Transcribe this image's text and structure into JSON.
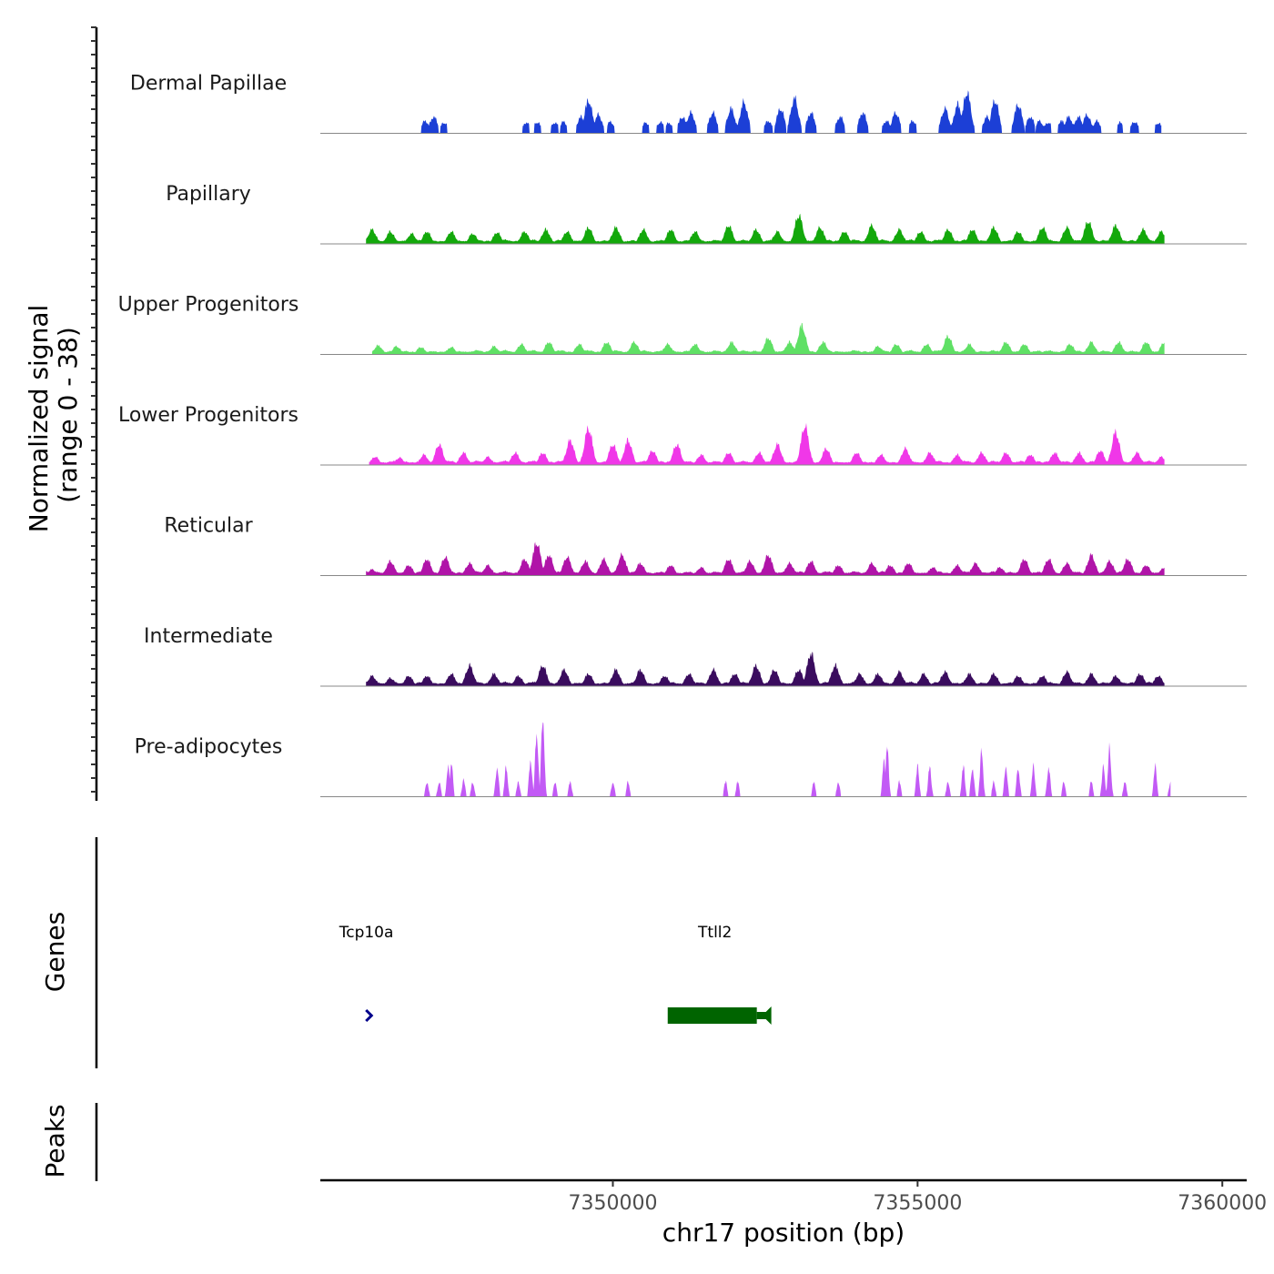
{
  "chart_data": {
    "type": "area",
    "title": "",
    "chromosome": "chr17",
    "xlabel": "chr17 position (bp)",
    "xlim": [
      7345200,
      7360400
    ],
    "xticks": [
      7350000,
      7355000,
      7360000
    ],
    "xtick_labels": [
      "7350000",
      "7355000",
      "7360000"
    ],
    "ylabel": "Normalized signal",
    "ylabel_sub": "(range 0 - 38)",
    "ylim": [
      0,
      38
    ],
    "genes_label": "Genes",
    "peaks_label": "Peaks",
    "series": [
      {
        "name": "Dermal Papillae",
        "color": "#1c3fd6",
        "bins": 40,
        "peaks": [
          [
            7346920,
            3
          ],
          [
            7347060,
            4
          ],
          [
            7347230,
            2.6
          ],
          [
            7348580,
            2.6
          ],
          [
            7348760,
            2.7
          ],
          [
            7349050,
            2.6
          ],
          [
            7349190,
            2.8
          ],
          [
            7349480,
            4
          ],
          [
            7349600,
            8
          ],
          [
            7349760,
            4.5
          ],
          [
            7349960,
            2.8
          ],
          [
            7350540,
            2.6
          ],
          [
            7350780,
            2.7
          ],
          [
            7350920,
            2.5
          ],
          [
            7351140,
            4
          ],
          [
            7351280,
            5
          ],
          [
            7351640,
            5
          ],
          [
            7351940,
            6
          ],
          [
            7352150,
            7.5
          ],
          [
            7352550,
            3
          ],
          [
            7352750,
            6
          ],
          [
            7352980,
            8.5
          ],
          [
            7353250,
            5
          ],
          [
            7353730,
            4
          ],
          [
            7354100,
            5
          ],
          [
            7354490,
            3
          ],
          [
            7354640,
            5
          ],
          [
            7354920,
            3
          ],
          [
            7355450,
            6
          ],
          [
            7355660,
            7
          ],
          [
            7355810,
            10
          ],
          [
            7356140,
            4
          ],
          [
            7356270,
            8
          ],
          [
            7356650,
            7
          ],
          [
            7356850,
            4
          ],
          [
            7357000,
            3
          ],
          [
            7357140,
            2.6
          ],
          [
            7357360,
            3
          ],
          [
            7357480,
            4
          ],
          [
            7357640,
            4
          ],
          [
            7357780,
            4.5
          ],
          [
            7357940,
            3
          ],
          [
            7358320,
            2.6
          ],
          [
            7358560,
            2.8
          ],
          [
            7358950,
            2.5
          ]
        ],
        "start": 7346850,
        "end": 7359000
      },
      {
        "name": "Papillary",
        "color": "#13a80b",
        "bins": 30,
        "peaks": [
          [
            7346050,
            3.5
          ],
          [
            7346350,
            3
          ],
          [
            7346700,
            2.5
          ],
          [
            7346950,
            3
          ],
          [
            7347350,
            3
          ],
          [
            7347700,
            2.5
          ],
          [
            7348100,
            2.8
          ],
          [
            7348550,
            3
          ],
          [
            7348900,
            3.5
          ],
          [
            7349250,
            3
          ],
          [
            7349600,
            4
          ],
          [
            7350050,
            4
          ],
          [
            7350500,
            3.5
          ],
          [
            7350950,
            3.5
          ],
          [
            7351350,
            3
          ],
          [
            7351900,
            4.5
          ],
          [
            7352350,
            3.5
          ],
          [
            7352700,
            3
          ],
          [
            7353050,
            7
          ],
          [
            7353400,
            4
          ],
          [
            7353800,
            3
          ],
          [
            7354250,
            4.5
          ],
          [
            7354700,
            3.5
          ],
          [
            7355050,
            3
          ],
          [
            7355500,
            3.5
          ],
          [
            7355900,
            3.5
          ],
          [
            7356250,
            4
          ],
          [
            7356650,
            3
          ],
          [
            7357050,
            4
          ],
          [
            7357450,
            4
          ],
          [
            7357800,
            5.5
          ],
          [
            7358250,
            4.5
          ],
          [
            7358700,
            3.5
          ],
          [
            7359000,
            3
          ]
        ],
        "start": 7345950,
        "end": 7359050
      },
      {
        "name": "Upper Progenitors",
        "color": "#5fe065",
        "bins": 30,
        "peaks": [
          [
            7346150,
            2.2
          ],
          [
            7346450,
            2
          ],
          [
            7346850,
            1.8
          ],
          [
            7347350,
            1.8
          ],
          [
            7348050,
            2
          ],
          [
            7348500,
            2.5
          ],
          [
            7348950,
            3
          ],
          [
            7349450,
            2.5
          ],
          [
            7349900,
            3
          ],
          [
            7350350,
            3
          ],
          [
            7350900,
            2.5
          ],
          [
            7351350,
            2.5
          ],
          [
            7351950,
            3
          ],
          [
            7352550,
            4
          ],
          [
            7352900,
            3
          ],
          [
            7353100,
            7
          ],
          [
            7353450,
            3
          ],
          [
            7354350,
            2
          ],
          [
            7354650,
            2.5
          ],
          [
            7355150,
            2.5
          ],
          [
            7355500,
            4.5
          ],
          [
            7355850,
            2.5
          ],
          [
            7356450,
            3
          ],
          [
            7356750,
            2.5
          ],
          [
            7357500,
            2.5
          ],
          [
            7357850,
            3
          ],
          [
            7358300,
            3
          ],
          [
            7358750,
            3
          ],
          [
            7359050,
            3
          ]
        ],
        "start": 7346050,
        "end": 7359050
      },
      {
        "name": "Lower Progenitors",
        "color": "#f037e8",
        "bins": 30,
        "peaks": [
          [
            7346100,
            2
          ],
          [
            7346500,
            1.8
          ],
          [
            7346900,
            2.5
          ],
          [
            7347150,
            5
          ],
          [
            7347550,
            3
          ],
          [
            7347950,
            2
          ],
          [
            7348400,
            3
          ],
          [
            7348850,
            3
          ],
          [
            7349300,
            6
          ],
          [
            7349600,
            9
          ],
          [
            7350000,
            5
          ],
          [
            7350250,
            6
          ],
          [
            7350650,
            3.5
          ],
          [
            7351050,
            5
          ],
          [
            7351450,
            2.5
          ],
          [
            7351900,
            3
          ],
          [
            7352400,
            3
          ],
          [
            7352700,
            5
          ],
          [
            7353150,
            9.5
          ],
          [
            7353500,
            4
          ],
          [
            7354000,
            3
          ],
          [
            7354400,
            2.5
          ],
          [
            7354800,
            4
          ],
          [
            7355200,
            3
          ],
          [
            7355650,
            2.5
          ],
          [
            7356050,
            3
          ],
          [
            7356450,
            3
          ],
          [
            7356850,
            2.5
          ],
          [
            7357250,
            3
          ],
          [
            7357650,
            3
          ],
          [
            7358000,
            3.5
          ],
          [
            7358250,
            8
          ],
          [
            7358600,
            3
          ],
          [
            7359000,
            2
          ]
        ],
        "start": 7346000,
        "end": 7359050
      },
      {
        "name": "Reticular",
        "color": "#b014a8",
        "bins": 30,
        "peaks": [
          [
            7346050,
            1.5
          ],
          [
            7346350,
            3.5
          ],
          [
            7346650,
            2.5
          ],
          [
            7346950,
            4
          ],
          [
            7347250,
            4.5
          ],
          [
            7347650,
            3
          ],
          [
            7347950,
            2.5
          ],
          [
            7348550,
            4
          ],
          [
            7348750,
            8
          ],
          [
            7348950,
            5
          ],
          [
            7349250,
            4.5
          ],
          [
            7349550,
            3.5
          ],
          [
            7349850,
            4
          ],
          [
            7350150,
            5
          ],
          [
            7350450,
            3
          ],
          [
            7350950,
            2.5
          ],
          [
            7351450,
            2
          ],
          [
            7351900,
            4
          ],
          [
            7352250,
            3.5
          ],
          [
            7352550,
            5
          ],
          [
            7352900,
            3
          ],
          [
            7353250,
            3.5
          ],
          [
            7353700,
            2.5
          ],
          [
            7354250,
            3
          ],
          [
            7354550,
            2.5
          ],
          [
            7354850,
            3
          ],
          [
            7355250,
            2
          ],
          [
            7355650,
            2.5
          ],
          [
            7355950,
            3
          ],
          [
            7356350,
            2
          ],
          [
            7356750,
            4
          ],
          [
            7357150,
            4
          ],
          [
            7357450,
            3
          ],
          [
            7357850,
            5
          ],
          [
            7358150,
            3.5
          ],
          [
            7358450,
            4
          ],
          [
            7358750,
            2.5
          ],
          [
            7359050,
            2
          ]
        ],
        "start": 7345950,
        "end": 7359050
      },
      {
        "name": "Intermediate",
        "color": "#3a0c5e",
        "bins": 30,
        "peaks": [
          [
            7346050,
            2.5
          ],
          [
            7346350,
            2
          ],
          [
            7346650,
            2.5
          ],
          [
            7346950,
            2.5
          ],
          [
            7347350,
            3
          ],
          [
            7347650,
            5
          ],
          [
            7348050,
            3
          ],
          [
            7348450,
            2.5
          ],
          [
            7348850,
            5
          ],
          [
            7349200,
            4
          ],
          [
            7349600,
            3
          ],
          [
            7350050,
            4
          ],
          [
            7350450,
            4
          ],
          [
            7350850,
            2.5
          ],
          [
            7351250,
            3
          ],
          [
            7351650,
            4
          ],
          [
            7352000,
            3
          ],
          [
            7352350,
            5
          ],
          [
            7352650,
            4
          ],
          [
            7353050,
            4
          ],
          [
            7353250,
            8
          ],
          [
            7353650,
            5
          ],
          [
            7354050,
            3
          ],
          [
            7354350,
            3
          ],
          [
            7354700,
            3.5
          ],
          [
            7355100,
            3
          ],
          [
            7355450,
            3.5
          ],
          [
            7355850,
            3
          ],
          [
            7356250,
            3
          ],
          [
            7356650,
            2.5
          ],
          [
            7357050,
            2.5
          ],
          [
            7357450,
            3.5
          ],
          [
            7357850,
            3
          ],
          [
            7358250,
            2.5
          ],
          [
            7358650,
            3
          ],
          [
            7358950,
            2.5
          ]
        ],
        "start": 7345950,
        "end": 7359050
      },
      {
        "name": "Pre-adipocytes",
        "color": "#c25af5",
        "bins": 60,
        "peaks": [
          [
            7346950,
            8
          ],
          [
            7347150,
            8
          ],
          [
            7347300,
            16
          ],
          [
            7347350,
            18
          ],
          [
            7347550,
            9
          ],
          [
            7347700,
            8
          ],
          [
            7348100,
            16
          ],
          [
            7348250,
            16
          ],
          [
            7348450,
            8
          ],
          [
            7348650,
            20
          ],
          [
            7348750,
            36
          ],
          [
            7348850,
            45
          ],
          [
            7349050,
            8
          ],
          [
            7349300,
            8
          ],
          [
            7350000,
            8
          ],
          [
            7350250,
            8
          ],
          [
            7351850,
            8
          ],
          [
            7352050,
            8
          ],
          [
            7353300,
            8
          ],
          [
            7353700,
            8
          ],
          [
            7354450,
            20
          ],
          [
            7354500,
            27
          ],
          [
            7354700,
            8
          ],
          [
            7355000,
            16
          ],
          [
            7355200,
            16
          ],
          [
            7355500,
            8
          ],
          [
            7355750,
            16
          ],
          [
            7355900,
            16
          ],
          [
            7356050,
            24
          ],
          [
            7356250,
            8
          ],
          [
            7356450,
            16
          ],
          [
            7356650,
            16
          ],
          [
            7356900,
            16
          ],
          [
            7357150,
            16
          ],
          [
            7357400,
            8
          ],
          [
            7357850,
            8
          ],
          [
            7358050,
            16
          ],
          [
            7358150,
            26
          ],
          [
            7358400,
            8
          ],
          [
            7358900,
            16
          ],
          [
            7359150,
            8
          ]
        ],
        "start": 7346850,
        "end": 7359150
      }
    ],
    "genes": [
      {
        "name": "Tcp10a",
        "start": 7345980,
        "end": 7346080,
        "strand": "+",
        "color": "#00008b"
      },
      {
        "name": "Ttll2",
        "start": 7350900,
        "end": 7352600,
        "strand": "-",
        "color": "#006400"
      }
    ],
    "peaks_track": []
  }
}
